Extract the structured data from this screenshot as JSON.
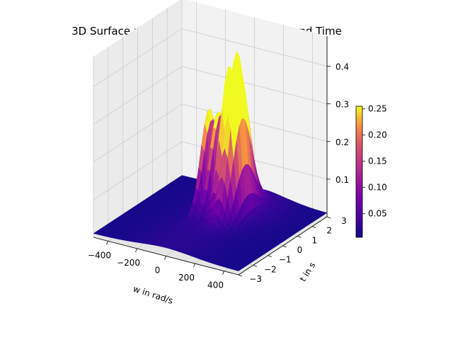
{
  "chart_data": {
    "type": "surface3d",
    "title": "3D Surface plot of Mag Response vs Freq and Time",
    "xlabel": "w in rad/s",
    "ylabel": "t in s",
    "zlabel": "",
    "xlim": [
      -500,
      500
    ],
    "ylim": [
      -3,
      3
    ],
    "zlim": [
      0,
      0.48
    ],
    "x_ticks": [
      "−400",
      "−200",
      "0",
      "200",
      "400"
    ],
    "y_ticks": [
      "−3",
      "−2",
      "−1",
      "0",
      "1",
      "2",
      "3"
    ],
    "z_ticks": [
      "0.1",
      "0.2",
      "0.3",
      "0.4"
    ],
    "colormap": "plasma",
    "colorbar": {
      "range": [
        0.005,
        0.255
      ],
      "ticks": [
        "0.05",
        "0.10",
        "0.15",
        "0.20",
        "0.25"
      ]
    },
    "description_peaks": {
      "main_peak": {
        "w": 100,
        "t": 0.8,
        "z": 0.47
      },
      "oscillation_band_w": [
        -100,
        50
      ],
      "baseline_z": 0.01
    }
  }
}
